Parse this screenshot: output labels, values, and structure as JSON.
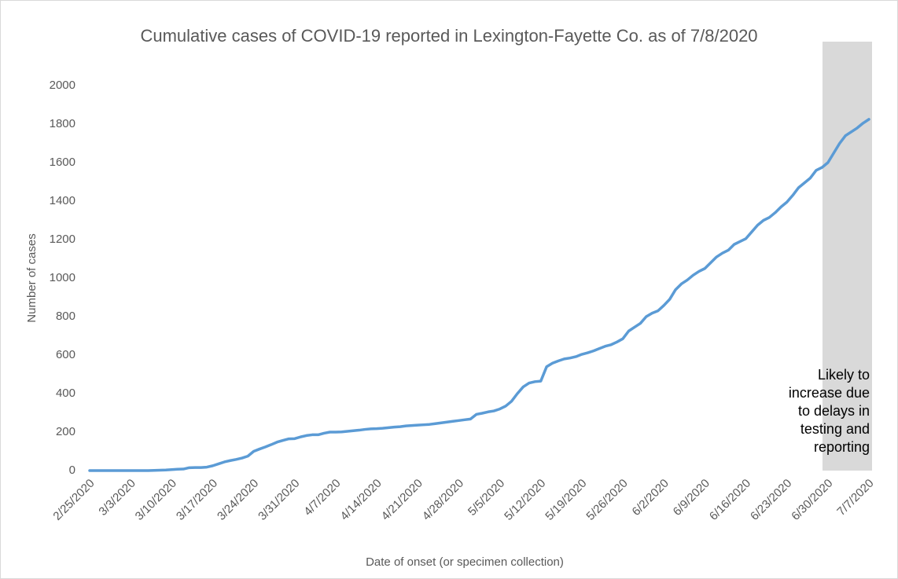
{
  "chart_data": {
    "type": "line",
    "title": "Cumulative cases of COVID-19 reported in Lexington-Fayette Co.  as of 7/8/2020",
    "x_label": "Date of onset (or specimen collection)",
    "y_label": "Number of cases",
    "annotation": "Likely to increase due to delays in testing and reporting",
    "categories": [
      "2/25/2020",
      null,
      null,
      null,
      null,
      null,
      null,
      "3/3/2020",
      null,
      null,
      null,
      null,
      null,
      null,
      "3/10/2020",
      null,
      null,
      null,
      null,
      null,
      null,
      "3/17/2020",
      null,
      null,
      null,
      null,
      null,
      null,
      "3/24/2020",
      null,
      null,
      null,
      null,
      null,
      null,
      "3/31/2020",
      null,
      null,
      null,
      null,
      null,
      null,
      "4/7/2020",
      null,
      null,
      null,
      null,
      null,
      null,
      "4/14/2020",
      null,
      null,
      null,
      null,
      null,
      null,
      "4/21/2020",
      null,
      null,
      null,
      null,
      null,
      null,
      "4/28/2020",
      null,
      null,
      null,
      null,
      null,
      null,
      "5/5/2020",
      null,
      null,
      null,
      null,
      null,
      null,
      "5/12/2020",
      null,
      null,
      null,
      null,
      null,
      null,
      "5/19/2020",
      null,
      null,
      null,
      null,
      null,
      null,
      "5/26/2020",
      null,
      null,
      null,
      null,
      null,
      null,
      "6/2/2020",
      null,
      null,
      null,
      null,
      null,
      null,
      "6/9/2020",
      null,
      null,
      null,
      null,
      null,
      null,
      "6/16/2020",
      null,
      null,
      null,
      null,
      null,
      null,
      "6/23/2020",
      null,
      null,
      null,
      null,
      null,
      null,
      "6/30/2020",
      null,
      null,
      null,
      null,
      null,
      null,
      "7/7/2020"
    ],
    "series": [
      {
        "color": "#5b9bd5",
        "values": [
          0,
          0,
          0,
          0,
          0,
          0,
          0,
          0,
          0,
          0,
          0,
          1,
          2,
          3,
          5,
          7,
          8,
          15,
          16,
          16,
          18,
          25,
          35,
          45,
          52,
          58,
          65,
          75,
          100,
          112,
          123,
          135,
          148,
          157,
          165,
          166,
          175,
          182,
          186,
          186,
          194,
          200,
          200,
          201,
          204,
          207,
          210,
          214,
          217,
          218,
          220,
          223,
          226,
          228,
          232,
          234,
          236,
          238,
          240,
          244,
          248,
          252,
          256,
          260,
          264,
          268,
          292,
          298,
          305,
          310,
          320,
          335,
          360,
          400,
          435,
          455,
          462,
          465,
          540,
          558,
          570,
          580,
          585,
          592,
          604,
          612,
          622,
          634,
          646,
          654,
          668,
          685,
          725,
          745,
          765,
          800,
          818,
          830,
          858,
          890,
          940,
          970,
          990,
          1015,
          1035,
          1050,
          1080,
          1110,
          1130,
          1145,
          1175,
          1190,
          1205,
          1240,
          1275,
          1300,
          1315,
          1340,
          1370,
          1395,
          1430,
          1470,
          1495,
          1520,
          1560,
          1575,
          1600,
          1650,
          1700,
          1740,
          1760,
          1780,
          1805,
          1825
        ]
      }
    ],
    "ylim": [
      0,
      2000
    ],
    "yticks": [
      0,
      200,
      400,
      600,
      800,
      1000,
      1200,
      1400,
      1600,
      1800,
      2000
    ],
    "grid": false
  }
}
